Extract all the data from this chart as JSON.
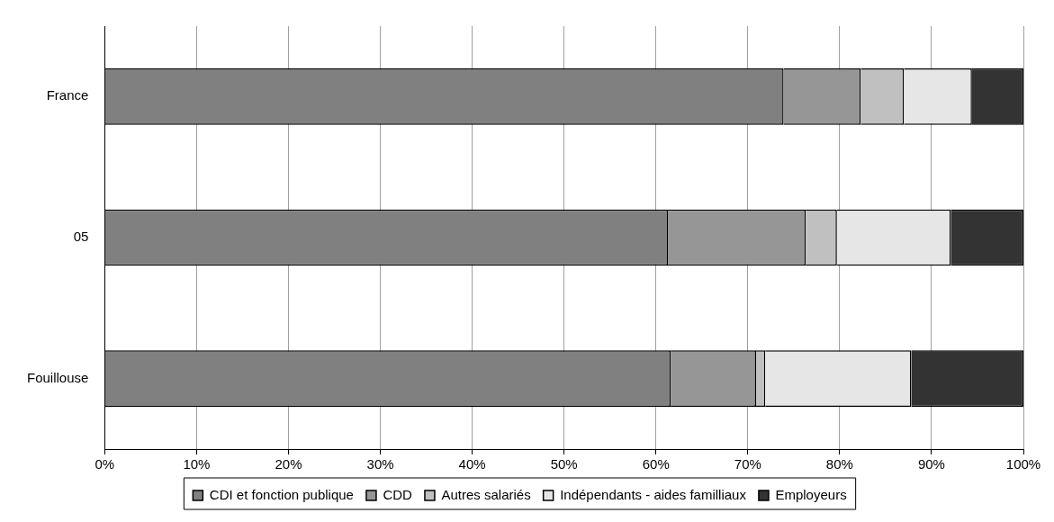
{
  "chart_data": {
    "type": "bar",
    "orientation": "horizontal",
    "stacked": true,
    "categories": [
      "France",
      "05",
      "Fouillouse"
    ],
    "series": [
      {
        "name": "CDI et fonction publique",
        "color": "#808080",
        "values": [
          73.9,
          61.3,
          61.6
        ]
      },
      {
        "name": "CDD",
        "color": "#969696",
        "values": [
          8.4,
          15.0,
          9.3
        ]
      },
      {
        "name": "Autres salariés",
        "color": "#c0c0c0",
        "values": [
          4.7,
          3.4,
          1.0
        ]
      },
      {
        "name": "Indépendants - aides familliaux",
        "color": "#e6e6e6",
        "values": [
          7.4,
          12.4,
          15.9
        ]
      },
      {
        "name": "Employeurs",
        "color": "#333333",
        "values": [
          5.6,
          7.9,
          12.2
        ]
      }
    ],
    "xlim": [
      0,
      100
    ],
    "xticks": [
      {
        "value": 0,
        "label": "0%"
      },
      {
        "value": 10,
        "label": "10%"
      },
      {
        "value": 20,
        "label": "20%"
      },
      {
        "value": 30,
        "label": "30%"
      },
      {
        "value": 40,
        "label": "40%"
      },
      {
        "value": 50,
        "label": "50%"
      },
      {
        "value": 60,
        "label": "60%"
      },
      {
        "value": 70,
        "label": "70%"
      },
      {
        "value": 80,
        "label": "80%"
      },
      {
        "value": 90,
        "label": "90%"
      },
      {
        "value": 100,
        "label": "100%"
      }
    ],
    "grid": "x",
    "legend": "bottom"
  }
}
